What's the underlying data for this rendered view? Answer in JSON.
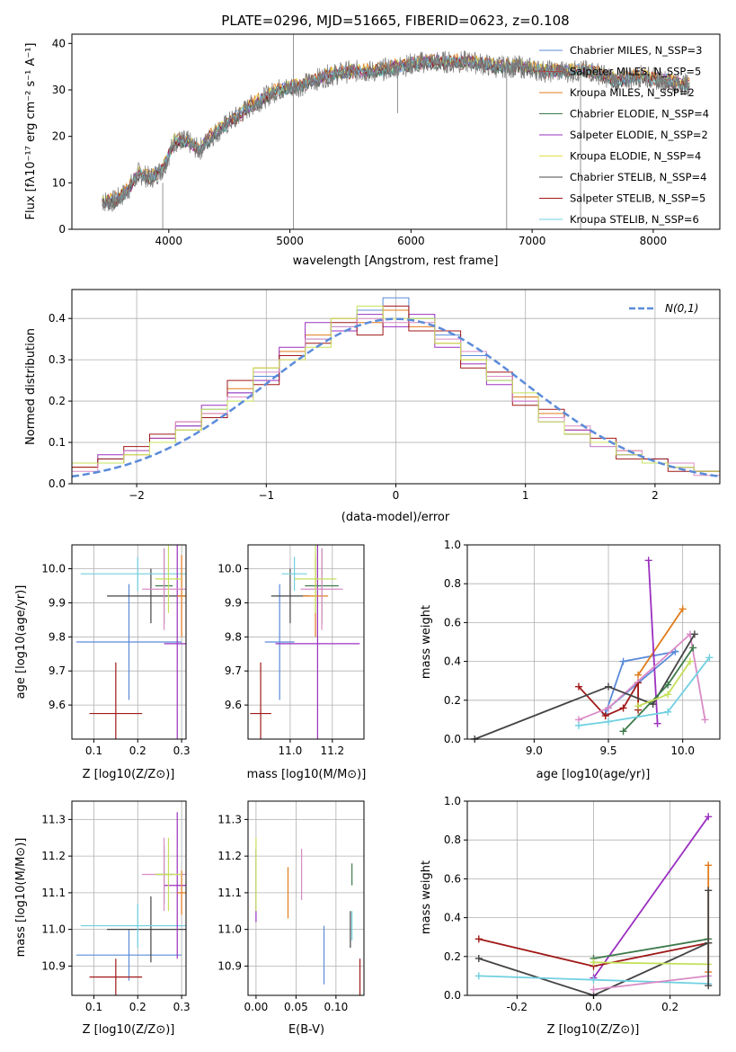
{
  "chart_data": [
    {
      "id": "spectrum",
      "type": "line",
      "title": "PLATE=0296, MJD=51665, FIBERID=0623, z=0.108",
      "xlabel": "wavelength [Angstrom, rest frame]",
      "ylabel": "Flux [fλ10⁻¹⁷ erg cm⁻² s⁻¹ A⁻¹]",
      "xlim": [
        3200,
        8550
      ],
      "ylim": [
        0,
        42
      ],
      "xticks": [
        4000,
        5000,
        6000,
        7000,
        8000
      ],
      "yticks": [
        0,
        10,
        20,
        30,
        40
      ],
      "grid": false,
      "legend_position": "right",
      "observed": {
        "color": "#7a7a7a",
        "x": [
          3450,
          3550,
          3650,
          3750,
          3850,
          3950,
          4050,
          4150,
          4250,
          4350,
          4500,
          4700,
          4900,
          5100,
          5300,
          5500,
          5700,
          5900,
          6100,
          6300,
          6500,
          6700,
          6900,
          7100,
          7300,
          7500,
          7700,
          7900,
          8100,
          8300
        ],
        "y": [
          6,
          6,
          8,
          12,
          11,
          13,
          19,
          19,
          17,
          20,
          23,
          27,
          30,
          31,
          33,
          34,
          34,
          35,
          36,
          36,
          36,
          35,
          35,
          34,
          34,
          34,
          32,
          33,
          32,
          31
        ]
      },
      "series": [
        {
          "name": "Chabrier MILES, N_SSP=3",
          "color": "#5b8bd9",
          "offset": 0.3
        },
        {
          "name": "Salpeter MILES, N_SSP=5",
          "color": "#a94a4a",
          "offset": -0.4
        },
        {
          "name": "Kroupa MILES, N_SSP=2",
          "color": "#e07b1a",
          "offset": 0.6
        },
        {
          "name": "Chabrier ELODIE, N_SSP=4",
          "color": "#3d7a4a",
          "offset": -0.2
        },
        {
          "name": "Salpeter ELODIE, N_SSP=2",
          "color": "#9b30c0",
          "offset": 0.1
        },
        {
          "name": "Kroupa ELODIE, N_SSP=4",
          "color": "#e0e04a",
          "offset": 0.4
        },
        {
          "name": "Chabrier STELIB, N_SSP=4",
          "color": "#444444",
          "offset": -0.6
        },
        {
          "name": "Salpeter STELIB, N_SSP=5",
          "color": "#a01818",
          "offset": 0.2
        },
        {
          "name": "Kroupa STELIB, N_SSP=6",
          "color": "#70d0e0",
          "offset": -0.1
        }
      ]
    },
    {
      "id": "residuals",
      "type": "bar",
      "xlabel": "(data-model)/error",
      "ylabel": "Normed distribution",
      "xlim": [
        -2.5,
        2.5
      ],
      "ylim": [
        0,
        0.47
      ],
      "xticks": [
        -2,
        -1,
        0,
        1,
        2
      ],
      "yticks": [
        0.0,
        0.1,
        0.2,
        0.3,
        0.4
      ],
      "grid": true,
      "legend_position": "top-right",
      "reference": {
        "name": "N(0,1)",
        "color": "#5b8bd9",
        "style": "dashed"
      },
      "bin_width": 0.1,
      "series": [
        {
          "color": "#5b8bd9",
          "values": [
            0.05,
            0.06,
            0.08,
            0.1,
            0.14,
            0.18,
            0.22,
            0.26,
            0.31,
            0.35,
            0.38,
            0.42,
            0.45,
            0.4,
            0.36,
            0.31,
            0.25,
            0.2,
            0.16,
            0.12,
            0.09,
            0.07,
            0.06,
            0.04,
            0.03
          ]
        },
        {
          "color": "#e07b1a",
          "values": [
            0.04,
            0.05,
            0.07,
            0.11,
            0.13,
            0.17,
            0.23,
            0.28,
            0.32,
            0.36,
            0.4,
            0.39,
            0.42,
            0.38,
            0.34,
            0.3,
            0.26,
            0.21,
            0.17,
            0.13,
            0.1,
            0.08,
            0.05,
            0.04,
            0.03
          ]
        },
        {
          "color": "#9b30c0",
          "values": [
            0.05,
            0.07,
            0.08,
            0.11,
            0.14,
            0.19,
            0.22,
            0.25,
            0.33,
            0.39,
            0.37,
            0.41,
            0.38,
            0.41,
            0.33,
            0.29,
            0.24,
            0.2,
            0.15,
            0.13,
            0.1,
            0.07,
            0.05,
            0.04,
            0.03
          ]
        },
        {
          "color": "#a01818",
          "values": [
            0.04,
            0.06,
            0.09,
            0.12,
            0.15,
            0.16,
            0.25,
            0.24,
            0.31,
            0.34,
            0.39,
            0.36,
            0.43,
            0.37,
            0.37,
            0.28,
            0.27,
            0.19,
            0.18,
            0.12,
            0.11,
            0.06,
            0.06,
            0.03,
            0.03
          ]
        },
        {
          "color": "#d98bc6",
          "values": [
            0.03,
            0.05,
            0.08,
            0.1,
            0.15,
            0.17,
            0.21,
            0.27,
            0.3,
            0.35,
            0.38,
            0.4,
            0.39,
            0.39,
            0.35,
            0.32,
            0.26,
            0.2,
            0.16,
            0.14,
            0.09,
            0.08,
            0.05,
            0.05,
            0.02
          ]
        },
        {
          "color": "#c4e05a",
          "values": [
            0.05,
            0.05,
            0.07,
            0.1,
            0.13,
            0.18,
            0.2,
            0.28,
            0.3,
            0.33,
            0.4,
            0.43,
            0.4,
            0.4,
            0.34,
            0.3,
            0.25,
            0.22,
            0.15,
            0.12,
            0.1,
            0.07,
            0.05,
            0.04,
            0.03
          ]
        }
      ]
    },
    {
      "id": "age-vs-z",
      "type": "scatter",
      "xlabel": "Z [log10(Z/Z⊙)]",
      "ylabel": "age  [log10(age/yr)]",
      "xlim": [
        0.05,
        0.31
      ],
      "ylim": [
        9.5,
        10.07
      ],
      "xticks": [
        0.1,
        0.2,
        0.3
      ],
      "yticks": [
        9.6,
        9.7,
        9.8,
        9.9,
        10.0
      ],
      "grid": true
    },
    {
      "id": "age-vs-mass",
      "type": "scatter",
      "xlabel": "mass [log10(M/M⊙)]",
      "ylabel": "",
      "xlim": [
        10.8,
        11.35
      ],
      "ylim": [
        9.5,
        10.07
      ],
      "xticks": [
        11.0,
        11.2
      ],
      "yticks": [
        9.6,
        9.7,
        9.8,
        9.9,
        10.0
      ],
      "grid": true
    },
    {
      "id": "weight-vs-age",
      "type": "line",
      "xlabel": "age  [log10(age/yr)]",
      "ylabel": "mass weight",
      "xlim": [
        8.55,
        10.25
      ],
      "ylim": [
        0,
        1.0
      ],
      "xticks": [
        9.0,
        9.5,
        10.0
      ],
      "yticks": [
        0.0,
        0.2,
        0.4,
        0.6,
        0.8,
        1.0
      ],
      "grid": true,
      "series": [
        {
          "color": "#5b8bd9",
          "x": [
            9.48,
            9.6,
            9.95,
            9.5
          ],
          "y": [
            0.13,
            0.4,
            0.45,
            0.16
          ]
        },
        {
          "color": "#e07b1a",
          "x": [
            9.7,
            10.0
          ],
          "y": [
            0.33,
            0.67
          ]
        },
        {
          "color": "#9b30c0",
          "x": [
            9.77,
            9.83
          ],
          "y": [
            0.92,
            0.08
          ]
        },
        {
          "color": "#a01818",
          "x": [
            9.3,
            9.48,
            9.6,
            9.7,
            9.7
          ],
          "y": [
            0.27,
            0.12,
            0.16,
            0.29,
            0.15
          ]
        },
        {
          "color": "#d98bc6",
          "x": [
            9.3,
            9.5,
            10.05,
            10.15
          ],
          "y": [
            0.1,
            0.16,
            0.54,
            0.1
          ]
        },
        {
          "color": "#444444",
          "x": [
            8.6,
            9.5,
            9.8,
            10.08
          ],
          "y": [
            0.0,
            0.27,
            0.18,
            0.54
          ]
        },
        {
          "color": "#3d7a4a",
          "x": [
            9.6,
            9.9,
            10.07
          ],
          "y": [
            0.04,
            0.28,
            0.47
          ]
        },
        {
          "color": "#c4e05a",
          "x": [
            9.7,
            9.9,
            10.05
          ],
          "y": [
            0.17,
            0.23,
            0.4
          ]
        },
        {
          "color": "#70d0e0",
          "x": [
            9.3,
            9.5,
            9.9,
            10.18
          ],
          "y": [
            0.07,
            0.09,
            0.14,
            0.42
          ]
        }
      ]
    },
    {
      "id": "mass-vs-z",
      "type": "scatter",
      "xlabel": "Z [log10(Z/Z⊙)]",
      "ylabel": "mass [log10(M/M⊙)]",
      "xlim": [
        0.05,
        0.31
      ],
      "ylim": [
        10.82,
        11.35
      ],
      "xticks": [
        0.1,
        0.2,
        0.3
      ],
      "yticks": [
        10.9,
        11.0,
        11.1,
        11.2,
        11.3
      ],
      "grid": true
    },
    {
      "id": "mass-vs-ebv",
      "type": "scatter",
      "xlabel": "E(B-V)",
      "ylabel": "",
      "xlim": [
        -0.01,
        0.135
      ],
      "ylim": [
        10.82,
        11.35
      ],
      "xticks": [
        0.0,
        0.05,
        0.1
      ],
      "yticks": [
        10.9,
        11.0,
        11.1,
        11.2,
        11.3
      ],
      "grid": true
    },
    {
      "id": "weight-vs-z",
      "type": "line",
      "xlabel": "Z [log10(Z/Z⊙)]",
      "ylabel": "mass weight",
      "xlim": [
        -0.33,
        0.33
      ],
      "ylim": [
        0,
        1.0
      ],
      "xticks": [
        -0.2,
        0.0,
        0.2
      ],
      "yticks": [
        0.0,
        0.2,
        0.4,
        0.6,
        0.8,
        1.0
      ],
      "grid": true,
      "series": [
        {
          "color": "#9b30c0",
          "x": [
            0.0,
            0.3
          ],
          "y": [
            0.09,
            0.92
          ]
        },
        {
          "color": "#a01818",
          "x": [
            -0.3,
            0.0,
            0.3
          ],
          "y": [
            0.29,
            0.15,
            0.27
          ]
        },
        {
          "color": "#444444",
          "x": [
            -0.3,
            0.0,
            0.3
          ],
          "y": [
            0.19,
            0.0,
            0.27
          ]
        },
        {
          "color": "#70d0e0",
          "x": [
            -0.3,
            0.0,
            0.3
          ],
          "y": [
            0.1,
            0.08,
            0.06
          ]
        },
        {
          "color": "#3d7a4a",
          "x": [
            0.0,
            0.3
          ],
          "y": [
            0.19,
            0.29
          ]
        },
        {
          "color": "#c4e05a",
          "x": [
            0.0,
            0.3
          ],
          "y": [
            0.17,
            0.16
          ]
        },
        {
          "color": "#d98bc6",
          "x": [
            0.0,
            0.3
          ],
          "y": [
            0.03,
            0.1
          ]
        },
        {
          "color": "#e07b1a",
          "x": [
            0.3,
            0.3
          ],
          "y": [
            0.12,
            0.67
          ]
        },
        {
          "color": "#444444",
          "x": [
            0.3,
            0.3
          ],
          "y": [
            0.05,
            0.54
          ]
        }
      ]
    }
  ],
  "error_points": [
    {
      "color": "#5b8bd9",
      "z": 0.18,
      "zerr": 0.12,
      "age": 9.785,
      "ageerr": 0.17,
      "mass": 10.93,
      "masserr": 0.07,
      "ebv": 0.085,
      "ebverr_m": 0.08
    },
    {
      "color": "#a01818",
      "z": 0.15,
      "zerr": 0.06,
      "age": 9.575,
      "ageerr": 0.15,
      "mass": 10.87,
      "masserr": 0.05,
      "ebv": 0.13,
      "ebverr_m": 0.05
    },
    {
      "color": "#444444",
      "z": 0.23,
      "zerr": 0.1,
      "age": 9.92,
      "ageerr": 0.08,
      "mass": 11.0,
      "masserr": 0.09,
      "ebv": 0.118,
      "ebverr_m": 0.05
    },
    {
      "color": "#70d0e0",
      "z": 0.2,
      "zerr": 0.13,
      "age": 9.985,
      "ageerr": 0.05,
      "mass": 11.01,
      "masserr": 0.06,
      "ebv": 0.12,
      "ebverr_m": 0.04
    },
    {
      "color": "#9b30c0",
      "z": 0.29,
      "zerr": 0.03,
      "age": 9.78,
      "ageerr": 0.3,
      "mass": 11.12,
      "masserr": 0.2,
      "ebv": 0.0,
      "ebverr_m": 0.1
    },
    {
      "color": "#e07b1a",
      "z": 0.3,
      "zerr": 0.01,
      "age": 9.92,
      "ageerr": 0.12,
      "mass": 11.1,
      "masserr": 0.06,
      "ebv": 0.04,
      "ebverr_m": 0.07
    },
    {
      "color": "#3d7a4a",
      "z": 0.26,
      "zerr": 0.02,
      "age": 9.95,
      "ageerr": 0.11,
      "mass": 11.15,
      "masserr": 0.08,
      "ebv": 0.12,
      "ebverr_m": 0.03
    },
    {
      "color": "#d98bc6",
      "z": 0.26,
      "zerr": 0.05,
      "age": 9.94,
      "ageerr": 0.12,
      "mass": 11.15,
      "masserr": 0.1,
      "ebv": 0.057,
      "ebverr_m": 0.07
    },
    {
      "color": "#c4e05a",
      "z": 0.27,
      "zerr": 0.03,
      "age": 9.97,
      "ageerr": 0.1,
      "mass": 11.15,
      "masserr": 0.1,
      "ebv": 0.0,
      "ebverr_m": 0.1
    }
  ]
}
